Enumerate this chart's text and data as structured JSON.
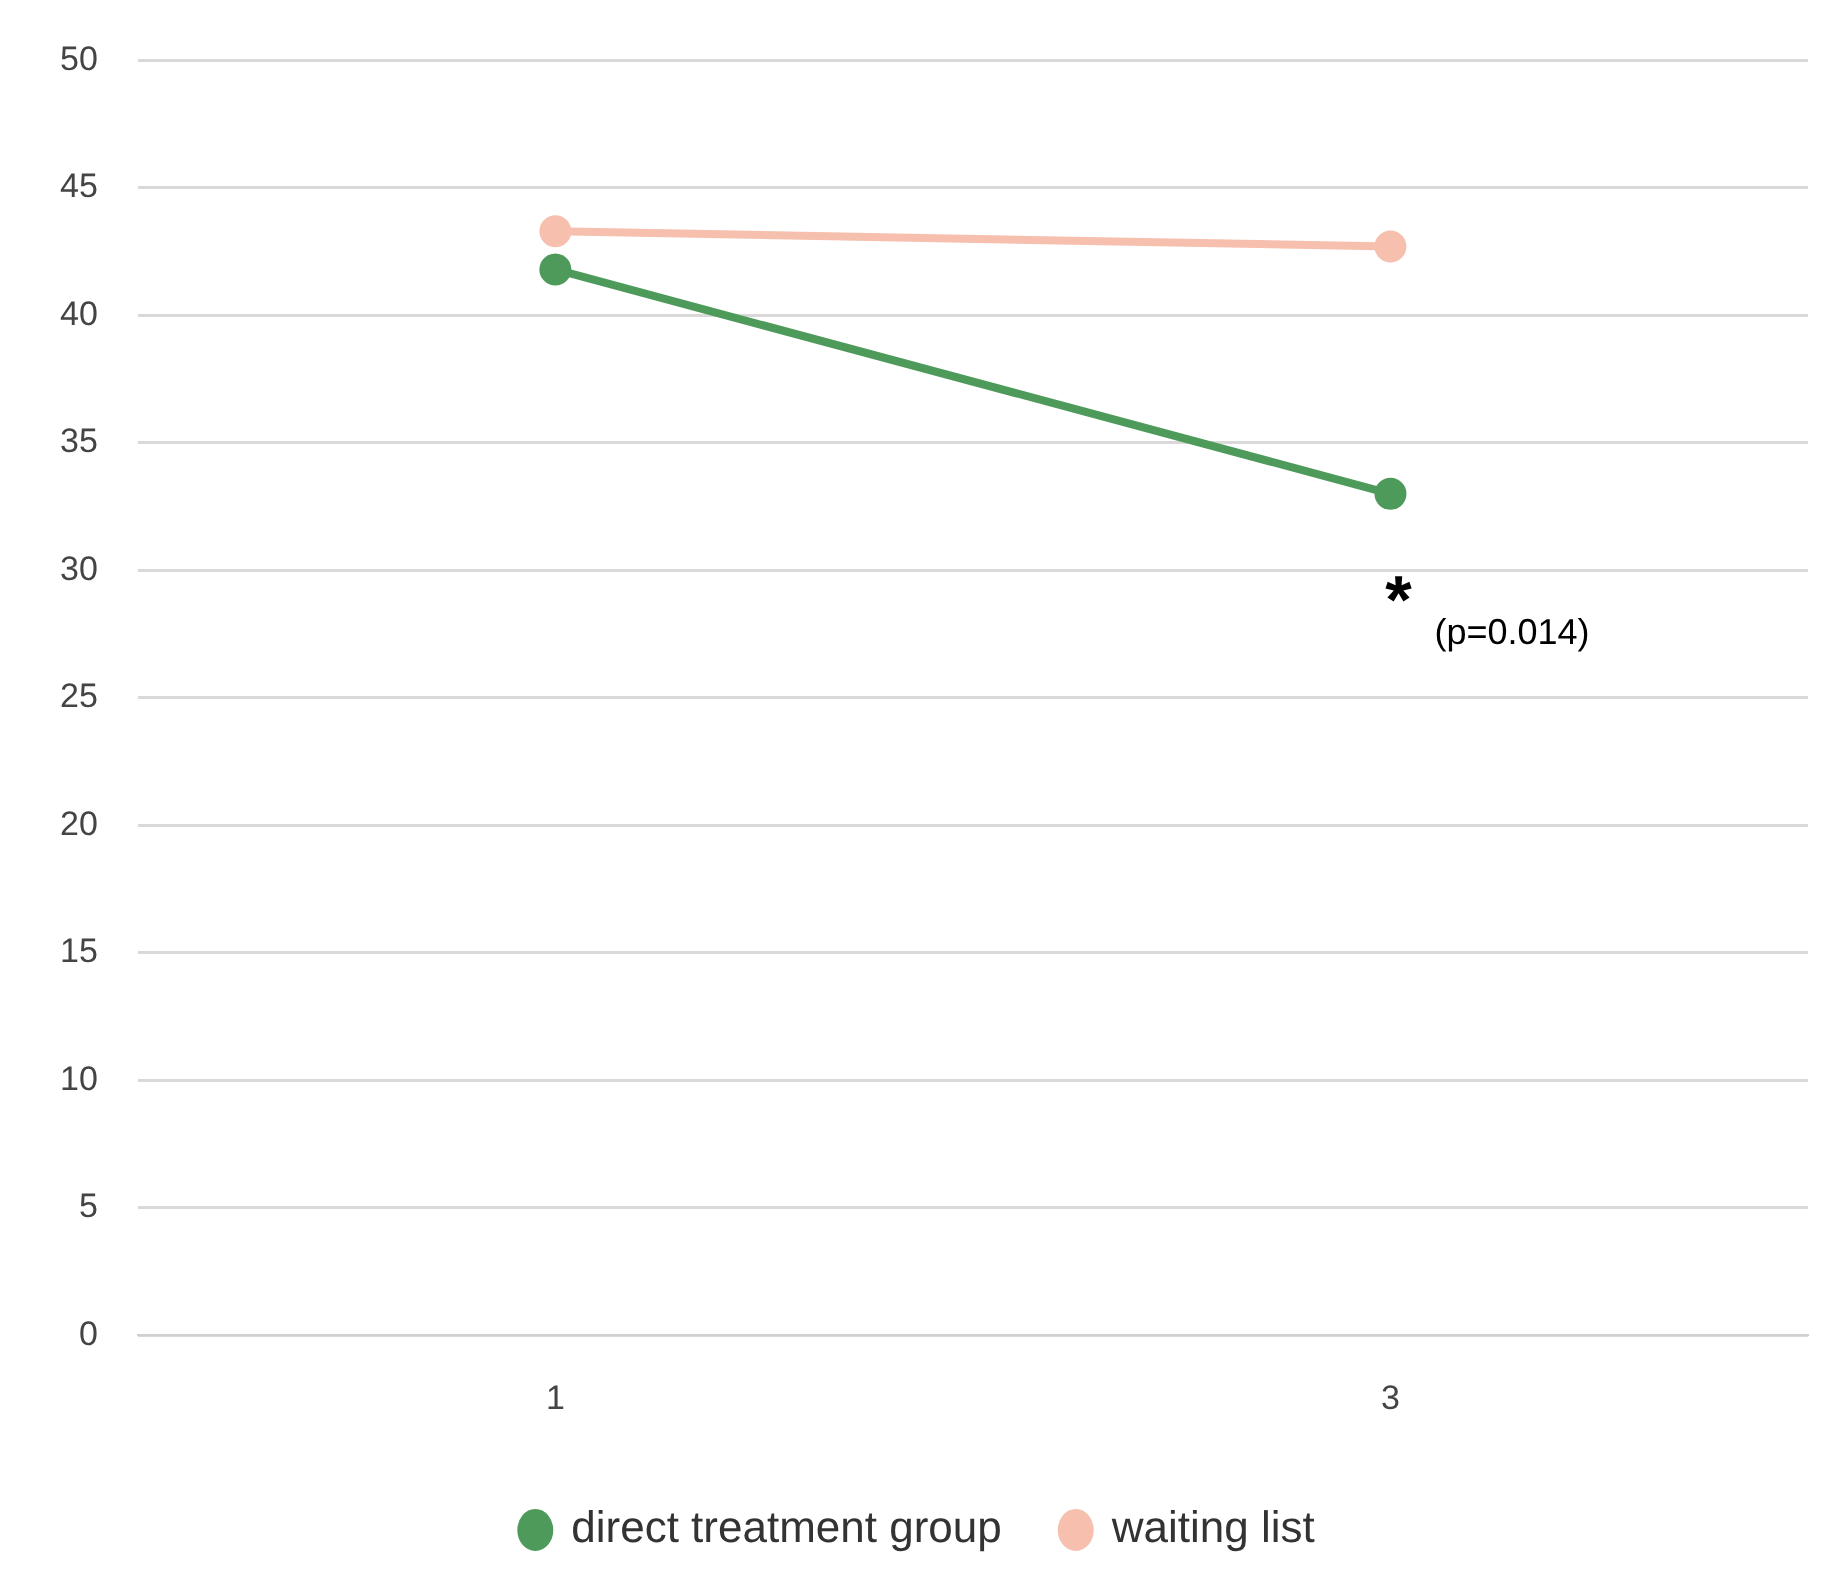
{
  "chart_data": {
    "type": "line",
    "categories": [
      "1",
      "3"
    ],
    "series": [
      {
        "name": "direct treatment group",
        "color": "#4e9a5a",
        "values": [
          41.8,
          33.0
        ]
      },
      {
        "name": "waiting list",
        "color": "#f7bfae",
        "values": [
          43.3,
          42.7
        ]
      }
    ],
    "ylim": [
      0,
      50
    ],
    "yticks": [
      0,
      5,
      10,
      15,
      20,
      25,
      30,
      35,
      40,
      45,
      50
    ],
    "grid": "y",
    "legend": "bottom",
    "marker": "circle",
    "annotations": [
      {
        "text": "*",
        "x": "3",
        "y": 33.0
      },
      "(p=0.014)"
    ]
  }
}
